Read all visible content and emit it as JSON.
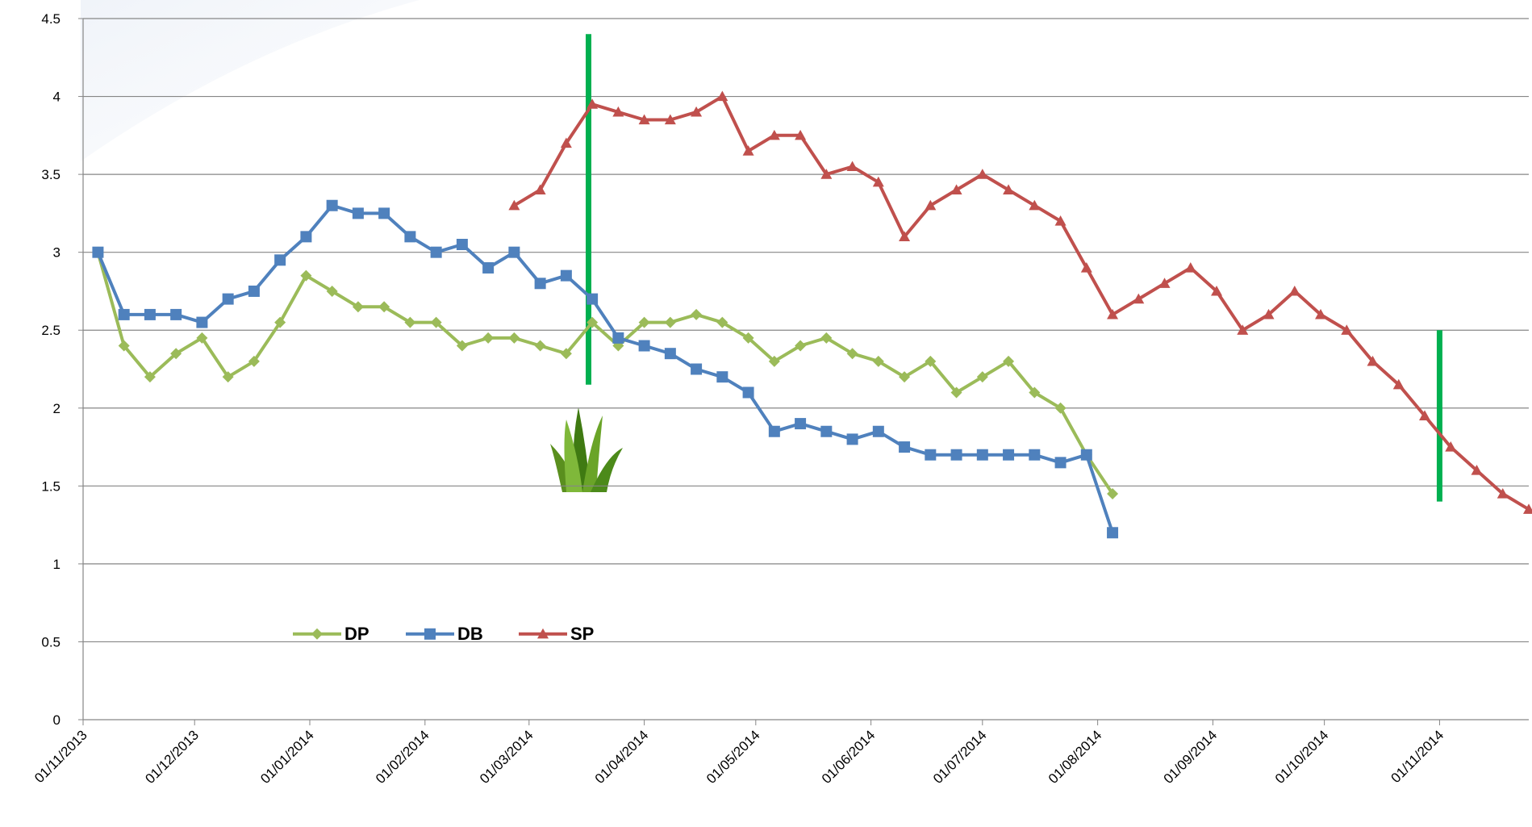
{
  "chart_data": {
    "type": "line",
    "x": [
      "05/11/2013",
      "12/11/2013",
      "19/11/2013",
      "26/11/2013",
      "03/12/2013",
      "10/12/2013",
      "17/12/2013",
      "24/12/2013",
      "31/12/2013",
      "07/01/2014",
      "14/01/2014",
      "21/01/2014",
      "28/01/2014",
      "04/02/2014",
      "11/02/2014",
      "18/02/2014",
      "25/02/2014",
      "04/03/2014",
      "11/03/2014",
      "18/03/2014",
      "25/03/2014",
      "01/04/2014",
      "08/04/2014",
      "15/04/2014",
      "22/04/2014",
      "29/04/2014",
      "06/05/2014",
      "13/05/2014",
      "20/05/2014",
      "27/05/2014",
      "03/06/2014",
      "10/06/2014",
      "17/06/2014",
      "24/06/2014",
      "01/07/2014",
      "08/07/2014",
      "15/07/2014",
      "22/07/2014",
      "29/07/2014",
      "05/08/2014",
      "12/08/2014",
      "19/08/2014",
      "26/08/2014",
      "02/09/2014",
      "09/09/2014",
      "16/09/2014",
      "23/09/2014",
      "30/09/2014",
      "07/10/2014",
      "14/10/2014",
      "21/10/2014",
      "28/10/2014",
      "04/11/2014",
      "11/11/2014",
      "18/11/2014",
      "25/11/2014"
    ],
    "series": [
      {
        "name": "DP",
        "color": "#9bbb59",
        "marker": "diamond",
        "values": [
          3.0,
          2.4,
          2.2,
          2.35,
          2.45,
          2.2,
          2.3,
          2.55,
          2.85,
          2.75,
          2.65,
          2.65,
          2.55,
          2.55,
          2.4,
          2.45,
          2.45,
          2.4,
          2.35,
          2.55,
          2.4,
          2.55,
          2.55,
          2.6,
          2.55,
          2.45,
          2.3,
          2.4,
          2.45,
          2.35,
          2.3,
          2.2,
          2.3,
          2.1,
          2.2,
          2.3,
          2.1,
          2.0,
          1.7,
          1.45,
          null,
          null,
          null,
          null,
          null,
          null,
          null,
          null,
          null,
          null,
          null,
          null,
          null,
          null,
          null,
          null
        ]
      },
      {
        "name": "DB",
        "color": "#4f81bd",
        "marker": "square",
        "values": [
          3.0,
          2.6,
          2.6,
          2.6,
          2.55,
          2.7,
          2.75,
          2.95,
          3.1,
          3.3,
          3.25,
          3.25,
          3.1,
          3.0,
          3.05,
          2.9,
          3.0,
          2.8,
          2.85,
          2.7,
          2.45,
          2.4,
          2.35,
          2.25,
          2.2,
          2.1,
          1.85,
          1.9,
          1.85,
          1.8,
          1.85,
          1.75,
          1.7,
          1.7,
          1.7,
          1.7,
          1.7,
          1.65,
          1.7,
          1.2,
          null,
          null,
          null,
          null,
          null,
          null,
          null,
          null,
          null,
          null,
          null,
          null,
          null,
          null,
          null,
          null
        ]
      },
      {
        "name": "SP",
        "color": "#c0504d",
        "marker": "triangle",
        "values": [
          null,
          null,
          null,
          null,
          null,
          null,
          null,
          null,
          null,
          null,
          null,
          null,
          null,
          null,
          null,
          null,
          3.3,
          3.4,
          3.7,
          3.95,
          3.9,
          3.85,
          3.85,
          3.9,
          4.0,
          3.65,
          3.75,
          3.75,
          3.5,
          3.55,
          3.45,
          3.1,
          3.3,
          3.4,
          3.5,
          3.4,
          3.3,
          3.2,
          2.9,
          2.6,
          2.7,
          2.8,
          2.9,
          2.75,
          2.5,
          2.6,
          2.75,
          2.6,
          2.5,
          2.3,
          2.15,
          1.95,
          1.75,
          1.6,
          1.45,
          1.35
        ]
      }
    ],
    "xlim": [
      "01/11/2013",
      "25/11/2014"
    ],
    "xticks": [
      "01/11/2013",
      "01/12/2013",
      "01/01/2014",
      "01/02/2014",
      "01/03/2014",
      "01/04/2014",
      "01/05/2014",
      "01/06/2014",
      "01/07/2014",
      "01/08/2014",
      "01/09/2014",
      "01/10/2014",
      "01/11/2014"
    ],
    "ylim": [
      0,
      4.5
    ],
    "yticks": [
      0,
      0.5,
      1,
      1.5,
      2,
      2.5,
      3,
      3.5,
      4,
      4.5
    ],
    "grid": true,
    "legend": "lower left",
    "vertical_lines": [
      {
        "x": "17/03/2014",
        "y": [
          2.15,
          4.4
        ],
        "color": "#00b050"
      },
      {
        "x": "01/11/2014",
        "y": [
          1.4,
          2.5
        ],
        "color": "#00b050"
      }
    ]
  }
}
